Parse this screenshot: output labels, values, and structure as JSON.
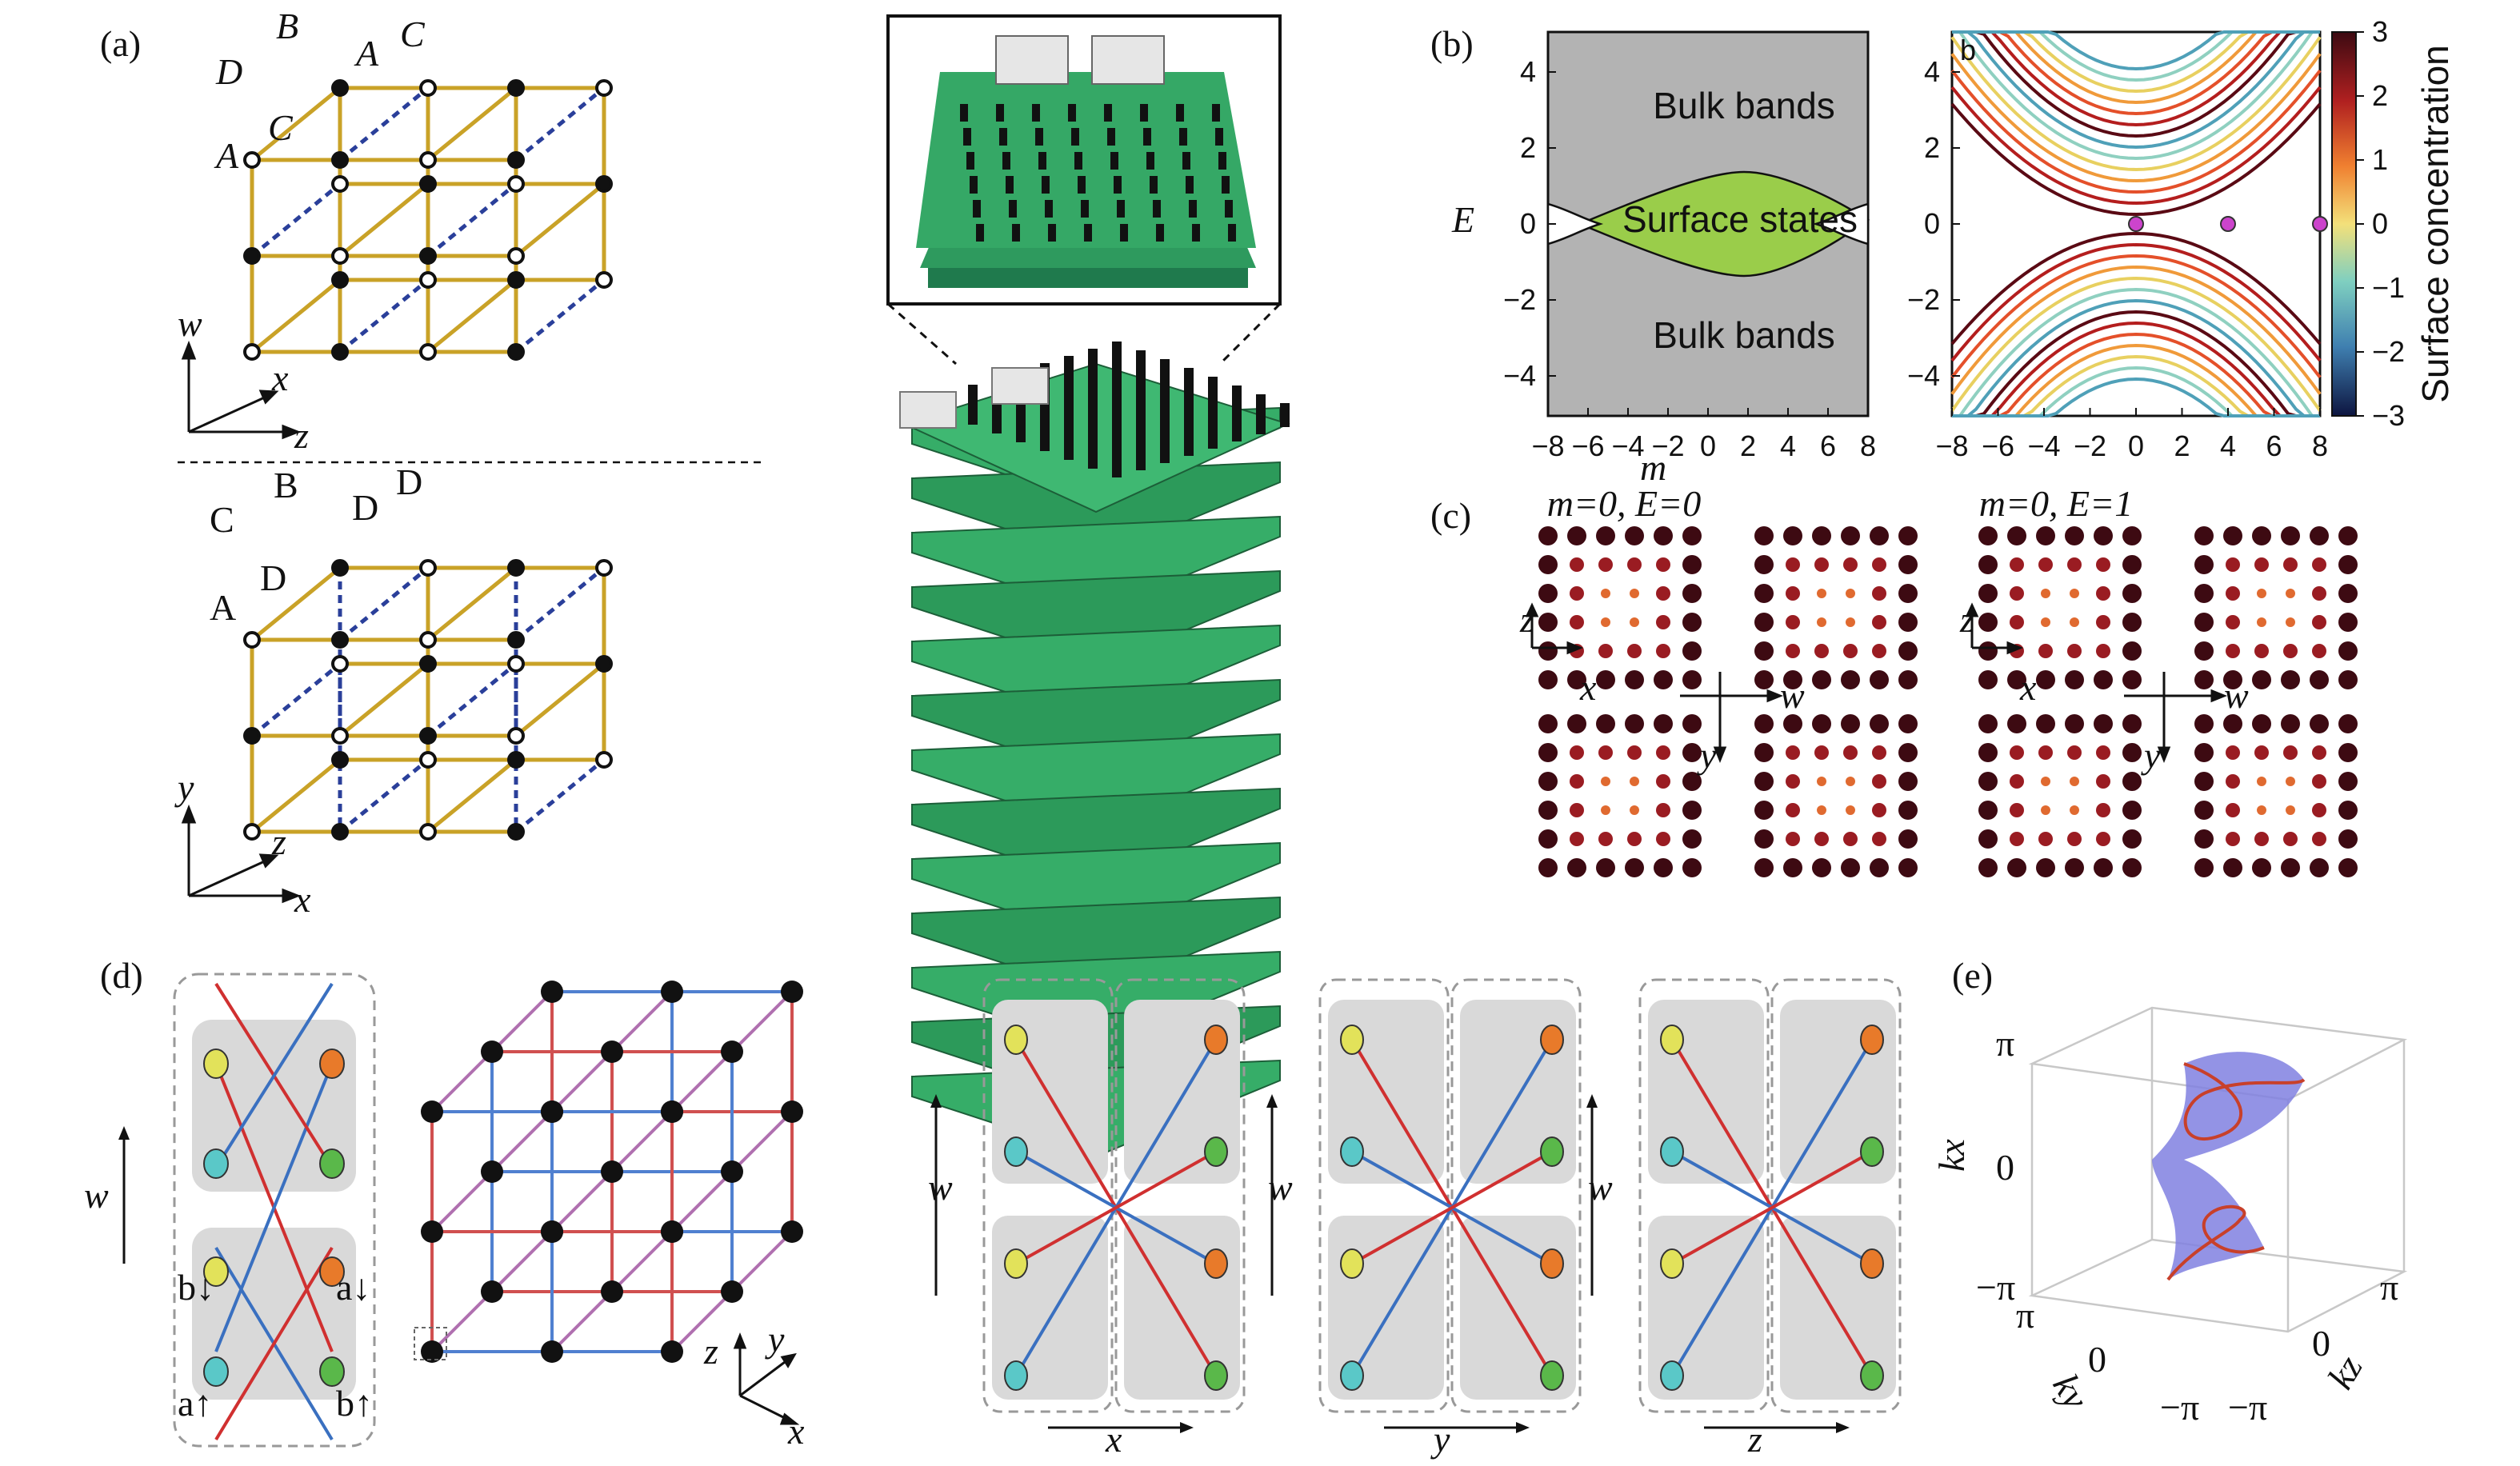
{
  "panel_labels": {
    "a": "(a)",
    "b": "(b)",
    "c": "(c)",
    "d": "(d)",
    "e": "(e)"
  },
  "panel_a": {
    "top_site_labels": [
      "B",
      "C",
      "D",
      "A",
      "C",
      "A"
    ],
    "bottom_site_labels": [
      "B",
      "D",
      "C",
      "A",
      "D",
      "A"
    ],
    "top_axes": [
      "w",
      "x",
      "z"
    ],
    "bottom_axes": [
      "y",
      "z",
      "x"
    ]
  },
  "panel_b": {
    "ylabel": "E",
    "xlabel": "m",
    "xticks": [
      "−8",
      "−6",
      "−4",
      "−2",
      "0",
      "2",
      "4",
      "6",
      "8"
    ],
    "yticks": [
      "4",
      "2",
      "0",
      "−2",
      "−4"
    ],
    "upper_region": "Bulk bands",
    "middle_region": "Surface states",
    "lower_region": "Bulk bands",
    "right_inset_letter": "b",
    "colorbar_label": "Surface concentration",
    "colorbar_ticks": [
      "3",
      "2",
      "1",
      "0",
      "−1",
      "−2",
      "−3"
    ],
    "colors": {
      "bulk": "#b3b3b3",
      "surface": "#9acd4a"
    }
  },
  "panel_c": {
    "left_title": "m=0, E=0",
    "right_title": "m=0, E=1",
    "axes": [
      "z",
      "x",
      "w",
      "y"
    ]
  },
  "panel_d": {
    "unit_axis": "w",
    "unit_labels": [
      "b↓",
      "a↓",
      "a↑",
      "b↑"
    ],
    "cube_axes": [
      "z",
      "y",
      "x"
    ],
    "columns": [
      {
        "vertical": "w",
        "horizontal": "x"
      },
      {
        "vertical": "w",
        "horizontal": "y"
      },
      {
        "vertical": "w",
        "horizontal": "z"
      }
    ]
  },
  "panel_e": {
    "vertical_axis": "kx",
    "left_axis": "ky",
    "right_axis": "kz",
    "ticks": [
      "π",
      "0",
      "−π"
    ],
    "surface_color": "#8080e0"
  }
}
